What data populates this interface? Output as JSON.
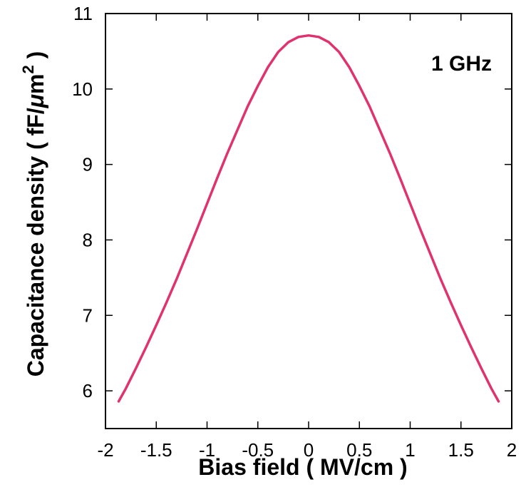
{
  "chart_data": {
    "type": "line",
    "title": "",
    "xlabel": "Bias field ( MV/cm )",
    "ylabel_prefix": "Capacitance density  ( fF/",
    "ylabel_mu": "μ",
    "ylabel_unit": "m",
    "ylabel_sup": "2",
    "ylabel_suffix": " )",
    "annotation": "1 GHz",
    "xlim": [
      -2,
      2
    ],
    "ylim": [
      5.5,
      11
    ],
    "x_ticks": [
      -2,
      -1.5,
      -1,
      -0.5,
      0,
      0.5,
      1,
      1.5,
      2
    ],
    "x_tick_labels": [
      "-2",
      "-1.5",
      "-1",
      "-0.5",
      "0",
      "0.5",
      "1",
      "1.5",
      "2"
    ],
    "y_ticks": [
      6,
      7,
      8,
      9,
      10,
      11
    ],
    "y_tick_labels": [
      "6",
      "7",
      "8",
      "9",
      "10",
      "11"
    ],
    "grid": false,
    "line_color": "#e0326e",
    "series": [
      {
        "x": [
          -1.87,
          -1.8,
          -1.7,
          -1.6,
          -1.5,
          -1.4,
          -1.3,
          -1.2,
          -1.1,
          -1.0,
          -0.9,
          -0.8,
          -0.7,
          -0.6,
          -0.5,
          -0.4,
          -0.3,
          -0.2,
          -0.1,
          0.0,
          0.1,
          0.2,
          0.3,
          0.4,
          0.5,
          0.6,
          0.7,
          0.8,
          0.9,
          1.0,
          1.1,
          1.2,
          1.3,
          1.4,
          1.5,
          1.6,
          1.7,
          1.8,
          1.87
        ],
        "y": [
          5.86,
          6.03,
          6.3,
          6.58,
          6.87,
          7.17,
          7.48,
          7.81,
          8.14,
          8.48,
          8.82,
          9.15,
          9.46,
          9.77,
          10.04,
          10.29,
          10.49,
          10.62,
          10.69,
          10.71,
          10.69,
          10.62,
          10.49,
          10.29,
          10.04,
          9.77,
          9.46,
          9.15,
          8.82,
          8.48,
          8.14,
          7.81,
          7.48,
          7.17,
          6.87,
          6.58,
          6.3,
          6.03,
          5.86
        ]
      }
    ]
  }
}
